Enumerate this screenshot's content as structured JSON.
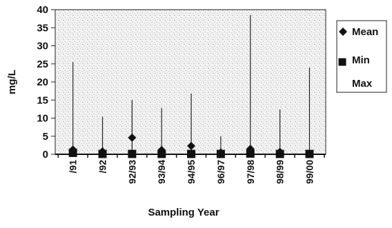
{
  "chart_data": {
    "type": "scatter",
    "title": "",
    "xlabel": "Sampling Year",
    "ylabel": "mg/L",
    "ylim": [
      0,
      40
    ],
    "yticks": [
      0,
      5,
      10,
      15,
      20,
      25,
      30,
      35,
      40
    ],
    "categories": [
      "/91",
      "/92",
      "92/93",
      "93/94",
      "94/95",
      "96/97",
      "97/98",
      "98/99",
      "99/00"
    ],
    "series": [
      {
        "name": "Mean",
        "marker": "diamond",
        "values": [
          1.3,
          0.8,
          4.6,
          1.2,
          2.3,
          0.5,
          1.5,
          0.7,
          0.1
        ]
      },
      {
        "name": "Min",
        "marker": "square",
        "values": [
          0.4,
          0.1,
          0.1,
          0.1,
          0.1,
          0.1,
          0.2,
          0.1,
          0.1
        ]
      },
      {
        "name": "Max",
        "marker": "line",
        "values": [
          25.5,
          10.4,
          15.0,
          12.8,
          16.8,
          5.0,
          38.5,
          12.4,
          24.0
        ]
      }
    ],
    "grid": false,
    "legend_position": "right",
    "background": "stippled gray"
  }
}
